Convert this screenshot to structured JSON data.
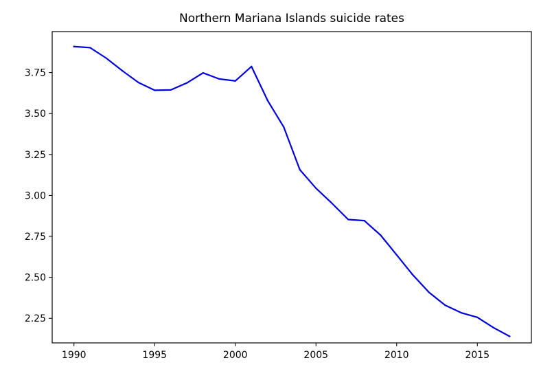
{
  "chart_data": {
    "type": "line",
    "title": "Northern Mariana Islands suicide rates",
    "xlabel": "",
    "ylabel": "",
    "x": [
      1990,
      1991,
      1992,
      1993,
      1994,
      1995,
      1996,
      1997,
      1998,
      1999,
      2000,
      2001,
      2002,
      2003,
      2004,
      2005,
      2006,
      2007,
      2008,
      2009,
      2010,
      2011,
      2012,
      2013,
      2014,
      2015,
      2016,
      2017
    ],
    "series": [
      {
        "color": "#0000dd",
        "values": [
          3.909,
          3.902,
          3.838,
          3.761,
          3.689,
          3.642,
          3.644,
          3.687,
          3.748,
          3.711,
          3.699,
          3.787,
          3.58,
          3.418,
          3.157,
          3.044,
          2.951,
          2.853,
          2.846,
          2.758,
          2.637,
          2.515,
          2.409,
          2.33,
          2.284,
          2.256,
          2.193,
          2.14
        ]
      }
    ],
    "xlim": [
      1988.65,
      1991.0
    ],
    "ylim": [
      2.1,
      4.0
    ],
    "x_ticks": [
      "1990",
      "1995",
      "2000",
      "2005",
      "2010",
      "2015"
    ],
    "y_ticks": [
      "2.25",
      "2.50",
      "2.75",
      "3.00",
      "3.25",
      "3.50",
      "3.75"
    ],
    "grid": false,
    "legend": "none"
  }
}
